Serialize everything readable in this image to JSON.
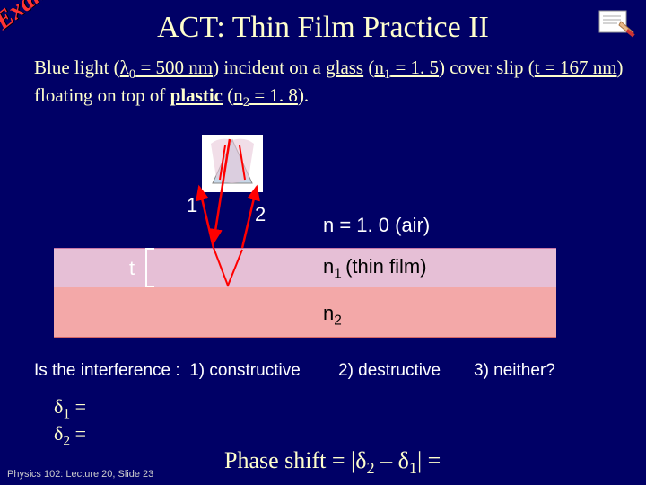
{
  "badge": "Example",
  "title": "ACT: Thin Film Practice II",
  "problem_html": "Blue light (<u>λ<span class='sub'>0</span> = 500 nm</u>) incident on a <u>glass</u> (<u>n<span class='sub'>1</span> = 1. 5</u>) cover slip (<u>t = 167 nm</u>) floating on top of <b><u>plastic</u></b> (<u>n<span class='sub'>2</span> = 1. 8</u>).",
  "diagram": {
    "ray1_label": "1",
    "ray2_label": "2",
    "t_label": "t",
    "n_air": "n = 1. 0 (air)",
    "n_film": "n<span class='sub'>1 </span>(thin film)",
    "n_sub": "n<span class='sub'>2</span>",
    "colors": {
      "thin_film": "#e6bfd6",
      "substrate": "#f3a8a8",
      "arrow": "#ff0000",
      "prism_fill": "#d8c8d8"
    }
  },
  "question": {
    "prefix": "Is the interference :",
    "opt1": "1) constructive",
    "opt2": "2) destructive",
    "opt3": "3) neither?"
  },
  "deltas": {
    "d1": "δ<span class='sub'>1</span> =",
    "d2": "δ<span class='sub'>2</span> ="
  },
  "phase_shift": "Phase shift = |δ<span class='sub'>2</span> – δ<span class='sub'>1</span>| =",
  "footer": "Physics 102: Lecture 20, Slide 23"
}
